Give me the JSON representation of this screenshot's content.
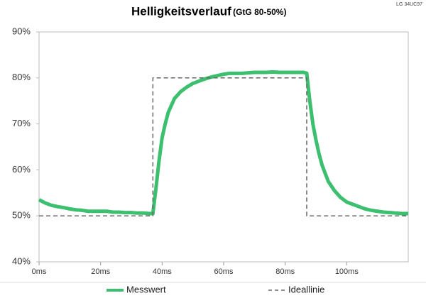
{
  "chart_data": {
    "type": "line",
    "title": "Helligkeitsverlauf",
    "subtitle": "(GtG 80-50%)",
    "annotation": "LG 34UC97",
    "xlim": [
      0,
      120
    ],
    "ylim": [
      40,
      90
    ],
    "xticks": [
      {
        "value": 0,
        "label": "0ms"
      },
      {
        "value": 20,
        "label": "20ms"
      },
      {
        "value": 40,
        "label": "40ms"
      },
      {
        "value": 60,
        "label": "60ms"
      },
      {
        "value": 80,
        "label": "80ms"
      },
      {
        "value": 100,
        "label": "100ms"
      }
    ],
    "yticks": [
      {
        "value": 40,
        "label": "40%"
      },
      {
        "value": 50,
        "label": "50%"
      },
      {
        "value": 60,
        "label": "60%"
      },
      {
        "value": 70,
        "label": "70%"
      },
      {
        "value": 80,
        "label": "80%"
      },
      {
        "value": 90,
        "label": "90%"
      }
    ],
    "grid": false,
    "legend": "bottom",
    "series": [
      {
        "name": "Messwert",
        "color": "#3cbf6e",
        "dashed": false,
        "x": [
          0,
          2,
          4,
          6,
          8,
          10,
          12,
          14,
          16,
          18,
          20,
          22,
          24,
          26,
          28,
          30,
          32,
          34,
          36,
          37,
          38,
          39,
          40,
          41,
          42,
          44,
          46,
          48,
          50,
          52,
          54,
          56,
          58,
          60,
          62,
          64,
          66,
          68,
          70,
          72,
          74,
          76,
          78,
          80,
          82,
          84,
          86,
          87,
          88,
          89,
          90,
          91,
          92,
          94,
          96,
          98,
          100,
          102,
          104,
          106,
          108,
          110,
          112,
          114,
          116,
          118,
          120
        ],
        "values": [
          53.5,
          52.8,
          52.3,
          52,
          51.8,
          51.5,
          51.3,
          51.2,
          51,
          51,
          51,
          51,
          50.8,
          50.8,
          50.7,
          50.7,
          50.6,
          50.6,
          50.5,
          50.5,
          56,
          62,
          67,
          70,
          72.5,
          75.5,
          77,
          78,
          78.8,
          79.3,
          79.8,
          80.2,
          80.5,
          80.8,
          81,
          81,
          81,
          81.1,
          81.2,
          81.2,
          81.2,
          81.3,
          81.2,
          81.2,
          81.2,
          81.2,
          81.2,
          81,
          75,
          70,
          66.5,
          63.5,
          61,
          57.5,
          55.5,
          54,
          53,
          52.5,
          52,
          51.5,
          51.2,
          51,
          50.8,
          50.7,
          50.6,
          50.5,
          50.5
        ]
      },
      {
        "name": "Ideallinie",
        "color": "#666666",
        "dashed": true,
        "x": [
          0,
          37,
          37,
          87,
          87,
          120
        ],
        "values": [
          50,
          50,
          80,
          80,
          50,
          50
        ]
      }
    ]
  }
}
